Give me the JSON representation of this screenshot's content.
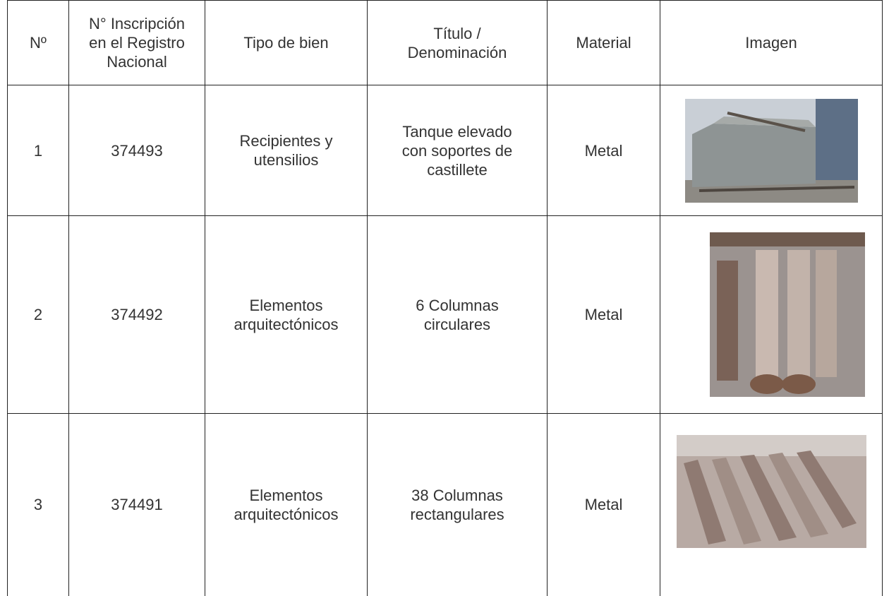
{
  "table": {
    "header": [
      "Nº",
      "N° Inscripción en el Registro Nacional",
      "Tipo de bien",
      "Título / Denominación",
      "Material",
      "Imagen"
    ],
    "rows": [
      [
        "1",
        "374493",
        "Recipientes y utensilios",
        "Tanque elevado con soportes de castillete",
        "Metal"
      ],
      [
        "2",
        "374492",
        "Elementos arquitectónicos",
        "6 Columnas circulares",
        "Metal"
      ],
      [
        "3",
        "374491",
        "Elementos arquitectónicos",
        "38 Columnas rectangulares",
        "Metal"
      ]
    ]
  }
}
